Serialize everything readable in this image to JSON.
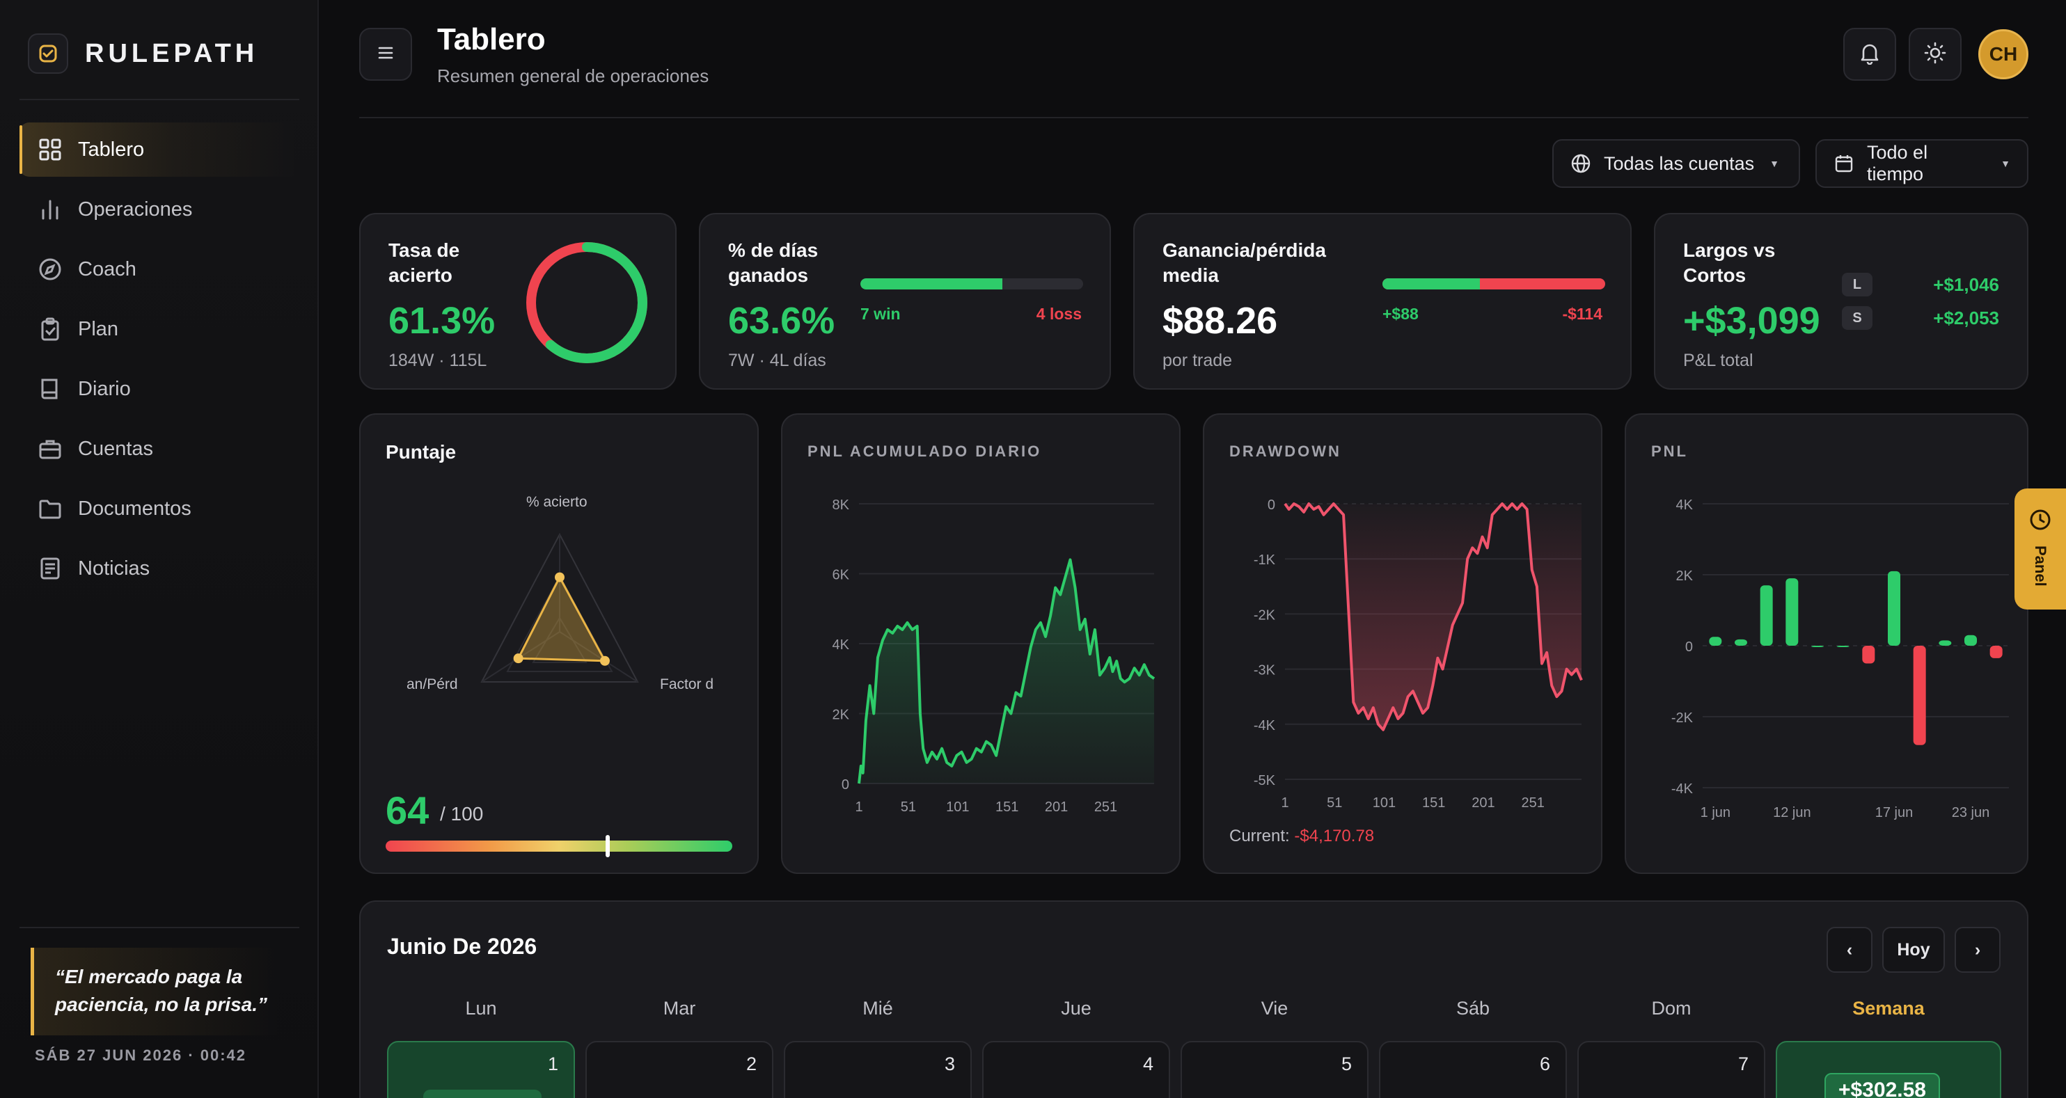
{
  "brand": {
    "name": "RULEPATH"
  },
  "nav": [
    {
      "label": "Tablero",
      "icon": "grid-icon",
      "active": true
    },
    {
      "label": "Operaciones",
      "icon": "bar-chart-icon"
    },
    {
      "label": "Coach",
      "icon": "compass-icon"
    },
    {
      "label": "Plan",
      "icon": "clipboard-icon"
    },
    {
      "label": "Diario",
      "icon": "book-icon"
    },
    {
      "label": "Cuentas",
      "icon": "briefcase-icon"
    },
    {
      "label": "Documentos",
      "icon": "folder-icon"
    },
    {
      "label": "Noticias",
      "icon": "newspaper-icon"
    }
  ],
  "sidebar": {
    "quote": "“El mercado paga la paciencia, no la prisa.”",
    "datetime": "SÁB 27 JUN 2026 · 00:42"
  },
  "header": {
    "title": "Tablero",
    "subtitle": "Resumen general de operaciones",
    "avatar_initials": "CH"
  },
  "filters": {
    "accounts": "Todas las cuentas",
    "period": "Todo el tiempo"
  },
  "kpis": {
    "win_rate": {
      "label": "Tasa de acierto",
      "value": "61.3%",
      "sub": "184W · 115L",
      "fraction": 0.613
    },
    "win_days": {
      "label": "% de días ganados",
      "value": "63.6%",
      "sub": "7W · 4L días",
      "win_label": "7 win",
      "loss_label": "4 loss",
      "fraction": 0.636
    },
    "avg_pnl": {
      "label": "Ganancia/pérdida media",
      "value": "$88.26",
      "sub": "por trade",
      "win_label": "+$88",
      "loss_label": "-$114",
      "fraction": 0.436
    },
    "long_short": {
      "label": "Largos vs Cortos",
      "value": "+$3,099",
      "sub": "P&L total",
      "long_badge": "L",
      "short_badge": "S",
      "long_value": "+$1,046",
      "short_value": "+$2,053"
    }
  },
  "score": {
    "title": "Puntaje",
    "axis_top": "% acierto",
    "axis_left": "an/Pérd",
    "axis_right": "Factor d",
    "value": "64",
    "out_of": "/ 100",
    "fraction": 0.64,
    "radar_values": [
      0.56,
      0.53,
      0.58
    ]
  },
  "charts": {
    "cum_title": "PNL ACUMULADO DIARIO",
    "dd_title": "DRAWDOWN",
    "dd_current_label": "Current:",
    "dd_current_value": "-$4,170.78",
    "pnl_title": "PNL"
  },
  "chart_data": [
    {
      "type": "area",
      "title": "PNL ACUMULADO DIARIO",
      "color": "#2ecc6a",
      "x_ticks": [
        "1",
        "51",
        "101",
        "151",
        "201",
        "251"
      ],
      "y_ticks": [
        "0",
        "2K",
        "4K",
        "6K",
        "8K"
      ],
      "ylim": [
        0,
        8000
      ],
      "xlim": [
        1,
        300
      ],
      "x": [
        1,
        3,
        5,
        8,
        12,
        16,
        20,
        25,
        30,
        35,
        40,
        45,
        50,
        55,
        60,
        63,
        66,
        70,
        75,
        80,
        85,
        90,
        95,
        100,
        105,
        110,
        115,
        120,
        125,
        130,
        135,
        140,
        145,
        150,
        155,
        160,
        165,
        170,
        175,
        180,
        185,
        190,
        195,
        200,
        205,
        210,
        215,
        220,
        225,
        230,
        235,
        240,
        245,
        250,
        255,
        258,
        262,
        266,
        270,
        275,
        280,
        285,
        290,
        295,
        300
      ],
      "y": [
        0,
        500,
        300,
        1800,
        2800,
        2000,
        3600,
        4100,
        4400,
        4300,
        4500,
        4400,
        4600,
        4400,
        4500,
        2000,
        1000,
        600,
        900,
        700,
        1000,
        600,
        500,
        800,
        900,
        600,
        700,
        1000,
        900,
        1200,
        1100,
        800,
        1500,
        2200,
        2000,
        2600,
        2500,
        3200,
        3900,
        4400,
        4600,
        4200,
        4800,
        5600,
        5400,
        5900,
        6400,
        5600,
        4400,
        4700,
        3700,
        4400,
        3100,
        3300,
        3600,
        3200,
        3500,
        3000,
        2900,
        3000,
        3300,
        3100,
        3400,
        3100,
        3000
      ]
    },
    {
      "type": "area",
      "title": "DRAWDOWN",
      "color": "#f0546c",
      "x_ticks": [
        "1",
        "51",
        "101",
        "151",
        "201",
        "251"
      ],
      "y_ticks": [
        "0",
        "-1K",
        "-2K",
        "-3K",
        "-4K",
        "-5K"
      ],
      "ylim": [
        -5000,
        0
      ],
      "xlim": [
        1,
        300
      ],
      "x": [
        1,
        5,
        10,
        15,
        20,
        25,
        30,
        35,
        40,
        45,
        50,
        55,
        60,
        65,
        70,
        75,
        80,
        85,
        90,
        95,
        100,
        105,
        110,
        115,
        120,
        125,
        130,
        135,
        140,
        145,
        150,
        155,
        160,
        165,
        170,
        175,
        180,
        185,
        190,
        195,
        200,
        205,
        210,
        215,
        220,
        225,
        230,
        235,
        240,
        245,
        250,
        255,
        260,
        265,
        270,
        275,
        280,
        285,
        290,
        295,
        300
      ],
      "y": [
        0,
        -100,
        0,
        -50,
        -150,
        0,
        -100,
        -50,
        -200,
        -100,
        0,
        -100,
        -200,
        -1900,
        -3600,
        -3800,
        -3700,
        -3900,
        -3700,
        -4000,
        -4100,
        -3900,
        -3700,
        -3900,
        -3800,
        -3500,
        -3400,
        -3600,
        -3800,
        -3700,
        -3300,
        -2800,
        -3000,
        -2600,
        -2200,
        -2000,
        -1800,
        -1000,
        -800,
        -900,
        -600,
        -800,
        -200,
        -100,
        0,
        -100,
        0,
        -100,
        0,
        -100,
        -1200,
        -1500,
        -2900,
        -2700,
        -3300,
        -3500,
        -3400,
        -3000,
        -3100,
        -3000,
        -3200
      ]
    },
    {
      "type": "bar",
      "title": "PNL",
      "x_ticks": [
        "1 jun",
        "12 jun",
        "17 jun",
        "23 jun"
      ],
      "y_ticks": [
        "4K",
        "2K",
        "0",
        "-2K",
        "-4K"
      ],
      "ylim": [
        -4000,
        4000
      ],
      "values": [
        250,
        180,
        1700,
        1900,
        0,
        0,
        -500,
        2100,
        -2800,
        150,
        300,
        -350
      ],
      "colors": {
        "positive": "#2ecc6a",
        "negative": "#f0444f"
      }
    }
  ],
  "calendar": {
    "title": "Junio De 2026",
    "today_label": "Hoy",
    "prev_label": "‹",
    "next_label": "›",
    "days": [
      "Lun",
      "Mar",
      "Mié",
      "Jue",
      "Vie",
      "Sáb",
      "Dom"
    ],
    "week_label": "Semana",
    "dates": [
      "1",
      "2",
      "3",
      "4",
      "5",
      "6",
      "7"
    ],
    "week_value": "+$302.58"
  },
  "panel_tab": {
    "label": "Panel"
  }
}
